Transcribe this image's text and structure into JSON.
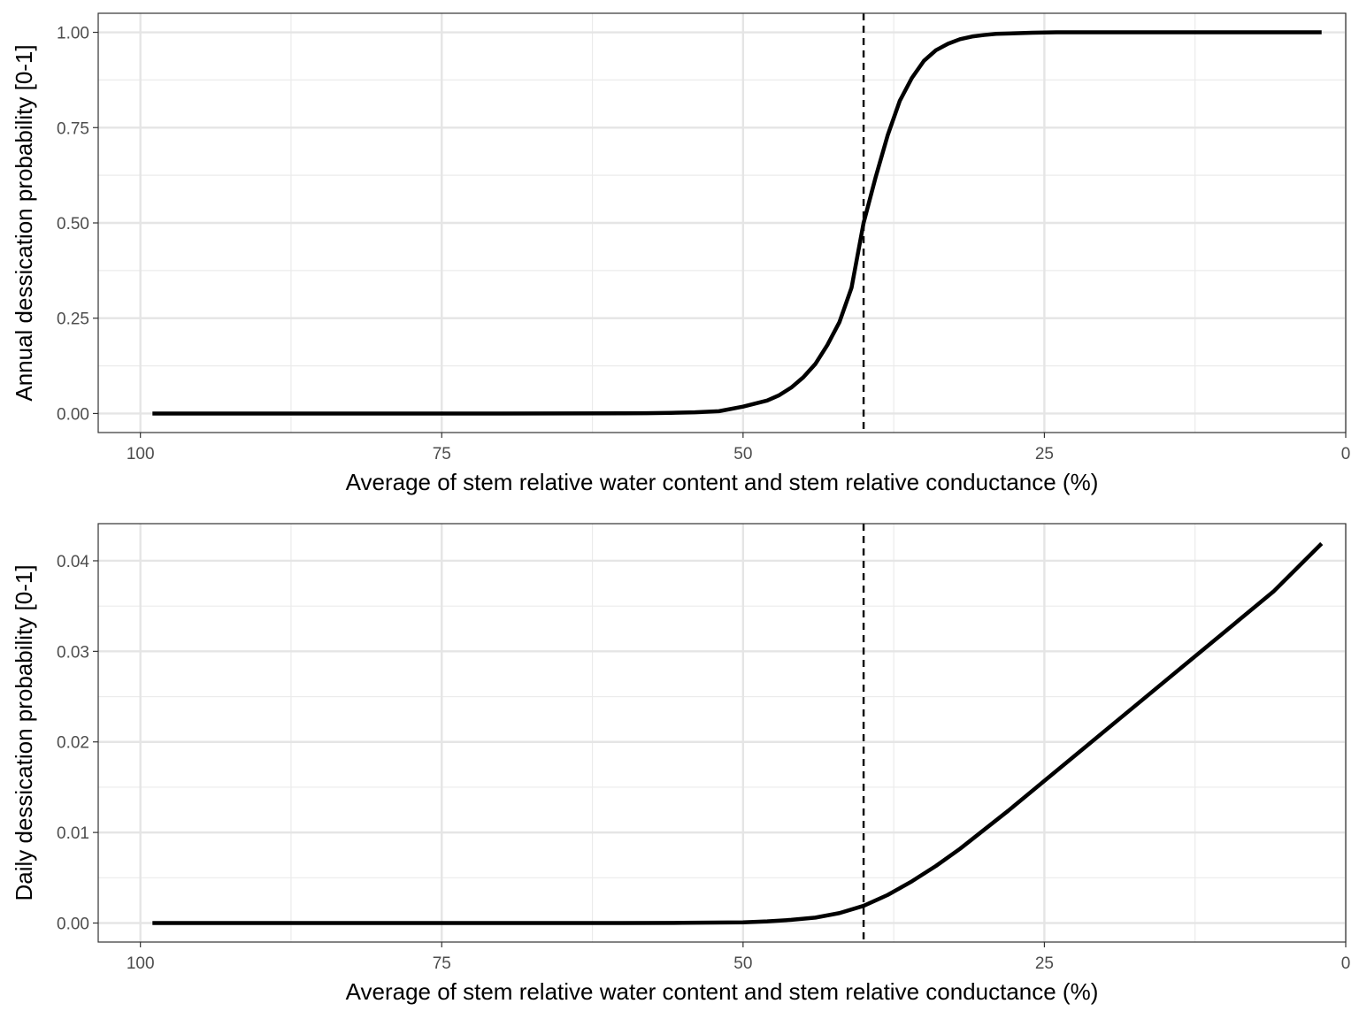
{
  "chart_data": [
    {
      "type": "line",
      "xlabel": "Average of stem relative water content and stem relative conductance (%)",
      "ylabel": "Annual dessication probability [0-1]",
      "x_reversed": true,
      "xlim": [
        103.5,
        0
      ],
      "ylim": [
        -0.05,
        1.05
      ],
      "x_ticks": [
        100,
        75,
        50,
        25,
        0
      ],
      "x_tick_labels": [
        "100",
        "75",
        "50",
        "25",
        "0"
      ],
      "y_ticks": [
        0,
        0.25,
        0.5,
        0.75,
        1.0
      ],
      "y_tick_labels": [
        "0.00",
        "0.25",
        "0.50",
        "0.75",
        "1.00"
      ],
      "grid": true,
      "vline": {
        "x": 40,
        "style": "dashed",
        "color": "#000000"
      },
      "series": [
        {
          "color": "#000000",
          "x": [
            99,
            90,
            80,
            70,
            65,
            60,
            58,
            56,
            54,
            52,
            50,
            48,
            47,
            46,
            45,
            44,
            43,
            42,
            41,
            40,
            39,
            38,
            37,
            36,
            35,
            34,
            33,
            32,
            31,
            30,
            29,
            28,
            26,
            24,
            22,
            20,
            15,
            10,
            5,
            2
          ],
          "y": [
            0.0,
            0.0,
            0.0,
            0.0,
            0.0002,
            0.0005,
            0.0009,
            0.0017,
            0.0031,
            0.006,
            0.018,
            0.034,
            0.048,
            0.068,
            0.095,
            0.13,
            0.18,
            0.24,
            0.33,
            0.5,
            0.62,
            0.73,
            0.82,
            0.88,
            0.925,
            0.953,
            0.97,
            0.982,
            0.989,
            0.993,
            0.996,
            0.997,
            0.999,
            1.0,
            1.0,
            1.0,
            1.0,
            1.0,
            1.0,
            1.0
          ]
        }
      ]
    },
    {
      "type": "line",
      "xlabel": "Average of stem relative water content and stem relative conductance  (%)",
      "ylabel": "Daily dessication probability [0-1]",
      "x_reversed": true,
      "xlim": [
        103.5,
        0
      ],
      "ylim": [
        -0.0021,
        0.0441
      ],
      "x_ticks": [
        100,
        75,
        50,
        25,
        0
      ],
      "x_tick_labels": [
        "100",
        "75",
        "50",
        "25",
        "0"
      ],
      "y_ticks": [
        0,
        0.01,
        0.02,
        0.03,
        0.04
      ],
      "y_tick_labels": [
        "0.00",
        "0.01",
        "0.02",
        "0.03",
        "0.04"
      ],
      "grid": true,
      "vline": {
        "x": 40,
        "style": "dashed",
        "color": "#000000"
      },
      "series": [
        {
          "color": "#000000",
          "x": [
            99,
            90,
            80,
            70,
            60,
            55,
            50,
            48,
            46,
            44,
            42,
            40,
            38,
            36,
            34,
            32,
            30,
            28,
            25,
            22,
            18,
            14,
            10,
            6,
            2
          ],
          "y": [
            0.0,
            0.0,
            0.0,
            0.0,
            0.0,
            2e-05,
            7e-05,
            0.00018,
            0.00035,
            0.0006,
            0.0011,
            0.0019,
            0.0031,
            0.0046,
            0.0063,
            0.0082,
            0.0103,
            0.0124,
            0.0157,
            0.019,
            0.0234,
            0.0278,
            0.0322,
            0.0366,
            0.0419
          ]
        }
      ]
    }
  ]
}
